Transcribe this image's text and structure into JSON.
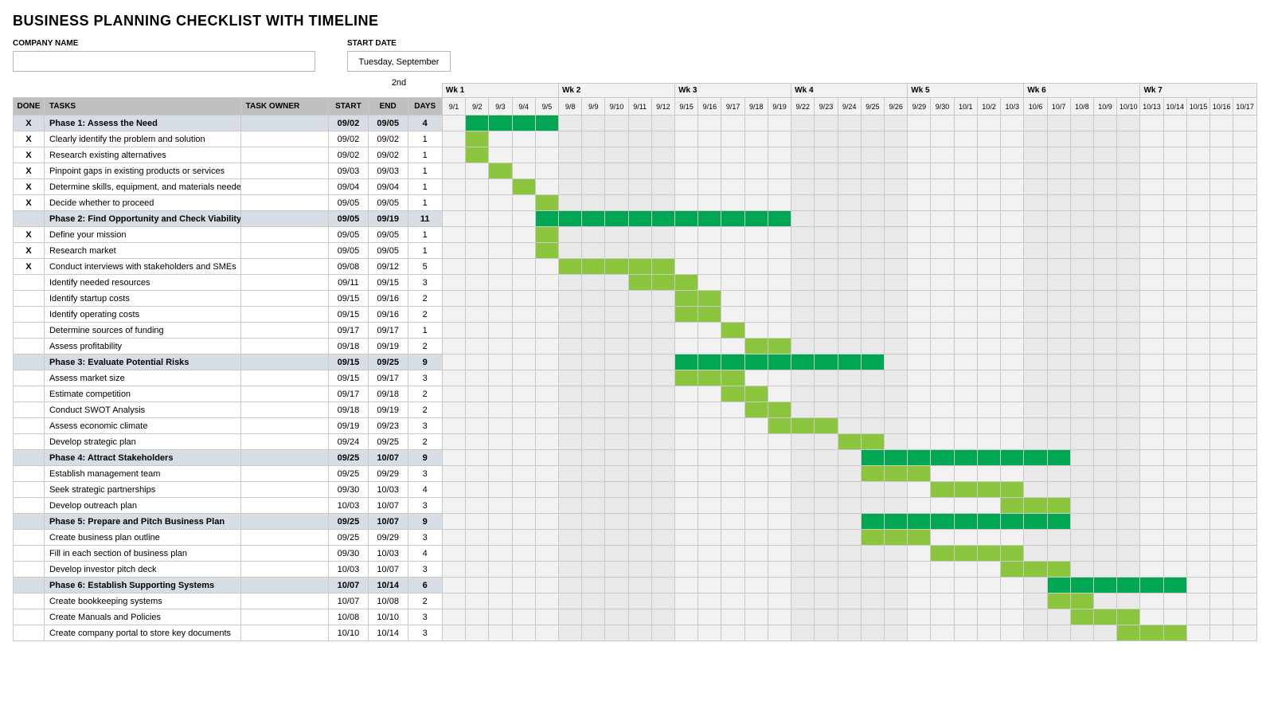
{
  "title": "BUSINESS PLANNING CHECKLIST WITH TIMELINE",
  "meta": {
    "company_label": "COMPANY NAME",
    "company_value": "",
    "startdate_label": "START DATE",
    "startdate_value": "Tuesday, September 2nd"
  },
  "headers": {
    "done": "DONE",
    "tasks": "TASKS",
    "owner": "TASK OWNER",
    "start": "START",
    "end": "END",
    "days": "DAYS"
  },
  "colors": {
    "header_bg": "#bfbfbf",
    "phase_bg": "#d7dde4",
    "timeline_bg": "#f2f2f2",
    "timeline_alt_bg": "#e9e9e9",
    "phase_bar": "#00a651",
    "task_bar": "#8cc63f",
    "grid": "#c9c9c9"
  },
  "weeks": [
    {
      "label": "Wk 1",
      "days": [
        "9/1",
        "9/2",
        "9/3",
        "9/4",
        "9/5"
      ]
    },
    {
      "label": "Wk 2",
      "days": [
        "9/8",
        "9/9",
        "9/10",
        "9/11",
        "9/12"
      ]
    },
    {
      "label": "Wk 3",
      "days": [
        "9/15",
        "9/16",
        "9/17",
        "9/18",
        "9/19"
      ]
    },
    {
      "label": "Wk 4",
      "days": [
        "9/22",
        "9/23",
        "9/24",
        "9/25",
        "9/26"
      ]
    },
    {
      "label": "Wk 5",
      "days": [
        "9/29",
        "9/30",
        "10/1",
        "10/2",
        "10/3"
      ]
    },
    {
      "label": "Wk 6",
      "days": [
        "10/6",
        "10/7",
        "10/8",
        "10/9",
        "10/10"
      ]
    },
    {
      "label": "Wk 7",
      "days": [
        "10/13",
        "10/14",
        "10/15",
        "10/16",
        "10/17"
      ]
    }
  ],
  "rows": [
    {
      "type": "phase",
      "done": "X",
      "task": "Phase 1: Assess the Need",
      "owner": "",
      "start": "09/02",
      "end": "09/05",
      "days": "4",
      "bar_start": 1,
      "bar_end": 4
    },
    {
      "type": "task",
      "done": "X",
      "task": "Clearly identify the problem and solution",
      "owner": "",
      "start": "09/02",
      "end": "09/02",
      "days": "1",
      "bar_start": 1,
      "bar_end": 1
    },
    {
      "type": "task",
      "done": "X",
      "task": "Research existing alternatives",
      "owner": "",
      "start": "09/02",
      "end": "09/02",
      "days": "1",
      "bar_start": 1,
      "bar_end": 1
    },
    {
      "type": "task",
      "done": "X",
      "task": "Pinpoint gaps in existing products or services",
      "owner": "",
      "start": "09/03",
      "end": "09/03",
      "days": "1",
      "bar_start": 2,
      "bar_end": 2
    },
    {
      "type": "task",
      "done": "X",
      "task": "Determine skills, equipment, and materials needed",
      "owner": "",
      "start": "09/04",
      "end": "09/04",
      "days": "1",
      "bar_start": 3,
      "bar_end": 3
    },
    {
      "type": "task",
      "done": "X",
      "task": "Decide whether to proceed",
      "owner": "",
      "start": "09/05",
      "end": "09/05",
      "days": "1",
      "bar_start": 4,
      "bar_end": 4
    },
    {
      "type": "phase",
      "done": "",
      "task": "Phase 2: Find Opportunity and Check Viability",
      "owner": "",
      "start": "09/05",
      "end": "09/19",
      "days": "11",
      "bar_start": 4,
      "bar_end": 14
    },
    {
      "type": "task",
      "done": "X",
      "task": "Define your mission",
      "owner": "",
      "start": "09/05",
      "end": "09/05",
      "days": "1",
      "bar_start": 4,
      "bar_end": 4
    },
    {
      "type": "task",
      "done": "X",
      "task": "Research market",
      "owner": "",
      "start": "09/05",
      "end": "09/05",
      "days": "1",
      "bar_start": 4,
      "bar_end": 4
    },
    {
      "type": "task",
      "done": "X",
      "task": "Conduct interviews with stakeholders and SMEs",
      "owner": "",
      "start": "09/08",
      "end": "09/12",
      "days": "5",
      "bar_start": 5,
      "bar_end": 9
    },
    {
      "type": "task",
      "done": "",
      "task": "Identify needed resources",
      "owner": "",
      "start": "09/11",
      "end": "09/15",
      "days": "3",
      "bar_start": 8,
      "bar_end": 10
    },
    {
      "type": "task",
      "done": "",
      "task": "Identify startup costs",
      "owner": "",
      "start": "09/15",
      "end": "09/16",
      "days": "2",
      "bar_start": 10,
      "bar_end": 11
    },
    {
      "type": "task",
      "done": "",
      "task": "Identify operating costs",
      "owner": "",
      "start": "09/15",
      "end": "09/16",
      "days": "2",
      "bar_start": 10,
      "bar_end": 11
    },
    {
      "type": "task",
      "done": "",
      "task": "Determine sources of funding",
      "owner": "",
      "start": "09/17",
      "end": "09/17",
      "days": "1",
      "bar_start": 12,
      "bar_end": 12
    },
    {
      "type": "task",
      "done": "",
      "task": "Assess profitability",
      "owner": "",
      "start": "09/18",
      "end": "09/19",
      "days": "2",
      "bar_start": 13,
      "bar_end": 14
    },
    {
      "type": "phase",
      "done": "",
      "task": "Phase 3: Evaluate Potential Risks",
      "owner": "",
      "start": "09/15",
      "end": "09/25",
      "days": "9",
      "bar_start": 10,
      "bar_end": 18
    },
    {
      "type": "task",
      "done": "",
      "task": "Assess market size",
      "owner": "",
      "start": "09/15",
      "end": "09/17",
      "days": "3",
      "bar_start": 10,
      "bar_end": 12
    },
    {
      "type": "task",
      "done": "",
      "task": "Estimate competition",
      "owner": "",
      "start": "09/17",
      "end": "09/18",
      "days": "2",
      "bar_start": 12,
      "bar_end": 13
    },
    {
      "type": "task",
      "done": "",
      "task": "Conduct SWOT Analysis",
      "owner": "",
      "start": "09/18",
      "end": "09/19",
      "days": "2",
      "bar_start": 13,
      "bar_end": 14
    },
    {
      "type": "task",
      "done": "",
      "task": "Assess economic climate",
      "owner": "",
      "start": "09/19",
      "end": "09/23",
      "days": "3",
      "bar_start": 14,
      "bar_end": 16
    },
    {
      "type": "task",
      "done": "",
      "task": "Develop strategic plan",
      "owner": "",
      "start": "09/24",
      "end": "09/25",
      "days": "2",
      "bar_start": 17,
      "bar_end": 18
    },
    {
      "type": "phase",
      "done": "",
      "task": "Phase 4: Attract Stakeholders",
      "owner": "",
      "start": "09/25",
      "end": "10/07",
      "days": "9",
      "bar_start": 18,
      "bar_end": 26
    },
    {
      "type": "task",
      "done": "",
      "task": "Establish management team",
      "owner": "",
      "start": "09/25",
      "end": "09/29",
      "days": "3",
      "bar_start": 18,
      "bar_end": 20
    },
    {
      "type": "task",
      "done": "",
      "task": "Seek strategic partnerships",
      "owner": "",
      "start": "09/30",
      "end": "10/03",
      "days": "4",
      "bar_start": 21,
      "bar_end": 24
    },
    {
      "type": "task",
      "done": "",
      "task": "Develop outreach plan",
      "owner": "",
      "start": "10/03",
      "end": "10/07",
      "days": "3",
      "bar_start": 24,
      "bar_end": 26
    },
    {
      "type": "phase",
      "done": "",
      "task": "Phase 5: Prepare and Pitch Business Plan",
      "owner": "",
      "start": "09/25",
      "end": "10/07",
      "days": "9",
      "bar_start": 18,
      "bar_end": 26
    },
    {
      "type": "task",
      "done": "",
      "task": "Create business plan outline",
      "owner": "",
      "start": "09/25",
      "end": "09/29",
      "days": "3",
      "bar_start": 18,
      "bar_end": 20
    },
    {
      "type": "task",
      "done": "",
      "task": "Fill in each section of business plan",
      "owner": "",
      "start": "09/30",
      "end": "10/03",
      "days": "4",
      "bar_start": 21,
      "bar_end": 24
    },
    {
      "type": "task",
      "done": "",
      "task": "Develop investor pitch deck",
      "owner": "",
      "start": "10/03",
      "end": "10/07",
      "days": "3",
      "bar_start": 24,
      "bar_end": 26
    },
    {
      "type": "phase",
      "done": "",
      "task": "Phase 6: Establish Supporting Systems",
      "owner": "",
      "start": "10/07",
      "end": "10/14",
      "days": "6",
      "bar_start": 26,
      "bar_end": 31
    },
    {
      "type": "task",
      "done": "",
      "task": "Create bookkeeping systems",
      "owner": "",
      "start": "10/07",
      "end": "10/08",
      "days": "2",
      "bar_start": 26,
      "bar_end": 27
    },
    {
      "type": "task",
      "done": "",
      "task": "Create Manuals and Policies",
      "owner": "",
      "start": "10/08",
      "end": "10/10",
      "days": "3",
      "bar_start": 27,
      "bar_end": 29
    },
    {
      "type": "task",
      "done": "",
      "task": "Create company portal to store key documents",
      "owner": "",
      "start": "10/10",
      "end": "10/14",
      "days": "3",
      "bar_start": 29,
      "bar_end": 31
    }
  ]
}
